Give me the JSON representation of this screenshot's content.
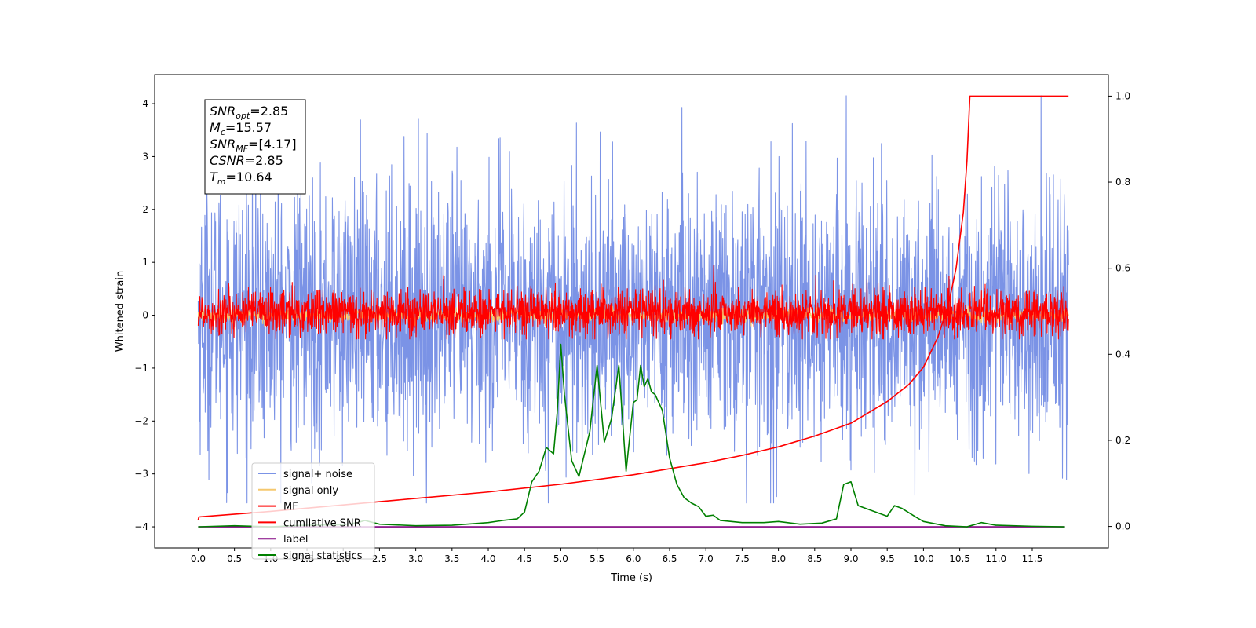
{
  "chart_data": {
    "type": "line",
    "title": "",
    "xlabel": "Time (s)",
    "ylabel": "Whitened strain",
    "ylabel_right": "",
    "xlim": [
      -0.6,
      12.55
    ],
    "ylim": [
      -4.4,
      4.55
    ],
    "ylim_right": [
      -0.05,
      1.05
    ],
    "grid": false,
    "legend_location": "lower-left",
    "x_ticks": [
      0.0,
      0.5,
      1.0,
      1.5,
      2.0,
      2.5,
      3.0,
      3.5,
      4.0,
      4.5,
      5.0,
      5.5,
      6.0,
      6.5,
      7.0,
      7.5,
      8.0,
      8.5,
      9.0,
      9.5,
      10.0,
      10.5,
      11.0,
      11.5
    ],
    "x_tick_labels": [
      "0.0",
      "0.5",
      "1.0",
      "1.5",
      "2.0",
      "2.5",
      "3.0",
      "3.5",
      "4.0",
      "4.5",
      "5.0",
      "5.5",
      "6.0",
      "6.5",
      "7.0",
      "7.5",
      "8.0",
      "8.5",
      "9.0",
      "9.5",
      "10.0",
      "10.5",
      "11.0",
      "11.5"
    ],
    "y_ticks": [
      4,
      3,
      2,
      1,
      0,
      -1,
      -2,
      -3,
      -4
    ],
    "y_tick_labels": [
      "4",
      "3",
      "2",
      "1",
      "0",
      "−1",
      "−2",
      "−3",
      "−4"
    ],
    "y_right_ticks": [
      1.0,
      0.8,
      0.6,
      0.4,
      0.2,
      0.0
    ],
    "y_right_tick_labels": [
      "1.0",
      "0.8",
      "0.6",
      "0.4",
      "0.2",
      "0.0"
    ],
    "annotation_box": [
      {
        "base": "SNR",
        "sub": "opt",
        "value": "=2.85"
      },
      {
        "base": "M",
        "sub": "c",
        "value": "=15.57"
      },
      {
        "base": "SNR",
        "sub": "MF",
        "value": "=[4.17]"
      },
      {
        "base": "CSNR",
        "sub": "",
        "value": "=2.85"
      },
      {
        "base": "T",
        "sub": "m",
        "value": "=10.64"
      }
    ],
    "series": [
      {
        "name": "signal+ noise",
        "color": "#7b93e6",
        "axis": "left",
        "kind": "noise",
        "x_range": [
          0.0,
          12.0
        ],
        "y_range": [
          -3.55,
          4.15
        ],
        "typical_amplitude": 2.0
      },
      {
        "name": "signal only",
        "color": "#f5c86e",
        "axis": "left",
        "kind": "noise",
        "x_range": [
          0.0,
          12.0
        ],
        "y_range": [
          -0.55,
          0.4
        ],
        "typical_amplitude": 0.1
      },
      {
        "name": "MF",
        "color": "#ff0000",
        "axis": "left",
        "kind": "noise",
        "x_range": [
          0.0,
          12.0
        ],
        "y_range": [
          -0.45,
          0.95
        ],
        "typical_amplitude": 0.35
      },
      {
        "name": "cumilative SNR",
        "color": "#ff0000",
        "axis": "right",
        "x": [
          0.0,
          0.01,
          1.0,
          2.0,
          3.0,
          4.0,
          5.0,
          6.0,
          7.0,
          7.5,
          8.0,
          8.5,
          9.0,
          9.5,
          9.8,
          10.0,
          10.2,
          10.35,
          10.45,
          10.55,
          10.6,
          10.64,
          12.0
        ],
        "y": [
          0.015,
          0.022,
          0.035,
          0.05,
          0.065,
          0.08,
          0.098,
          0.12,
          0.148,
          0.165,
          0.185,
          0.21,
          0.24,
          0.29,
          0.33,
          0.37,
          0.44,
          0.52,
          0.6,
          0.73,
          0.85,
          1.0,
          1.0
        ]
      },
      {
        "name": "label",
        "color": "#800080",
        "axis": "left",
        "x": [
          0.0,
          11.95
        ],
        "y": [
          -4.0,
          -4.0
        ]
      },
      {
        "name": "signal statistics",
        "color": "#008000",
        "axis": "left",
        "x": [
          0.0,
          0.5,
          1.0,
          1.5,
          2.0,
          2.2,
          2.3,
          2.5,
          3.0,
          3.5,
          4.0,
          4.2,
          4.4,
          4.5,
          4.6,
          4.7,
          4.8,
          4.9,
          4.95,
          5.0,
          5.05,
          5.15,
          5.25,
          5.4,
          5.5,
          5.6,
          5.7,
          5.8,
          5.9,
          6.0,
          6.05,
          6.1,
          6.15,
          6.2,
          6.25,
          6.3,
          6.4,
          6.5,
          6.6,
          6.7,
          6.8,
          6.9,
          7.0,
          7.1,
          7.2,
          7.5,
          7.8,
          8.0,
          8.3,
          8.6,
          8.8,
          8.9,
          9.0,
          9.1,
          9.3,
          9.5,
          9.6,
          9.7,
          9.9,
          10.0,
          10.3,
          10.6,
          10.8,
          11.0,
          11.5,
          11.95
        ],
        "y": [
          -4.0,
          -3.98,
          -4.0,
          -3.97,
          -3.96,
          -3.92,
          -3.88,
          -3.95,
          -3.98,
          -3.97,
          -3.92,
          -3.88,
          -3.85,
          -3.72,
          -3.15,
          -2.95,
          -2.5,
          -2.62,
          -1.85,
          -0.55,
          -1.5,
          -2.75,
          -3.05,
          -2.2,
          -0.95,
          -2.4,
          -1.95,
          -0.95,
          -2.95,
          -1.65,
          -1.6,
          -0.95,
          -1.35,
          -1.2,
          -1.45,
          -1.5,
          -1.8,
          -2.7,
          -3.2,
          -3.45,
          -3.55,
          -3.62,
          -3.8,
          -3.78,
          -3.88,
          -3.92,
          -3.92,
          -3.9,
          -3.95,
          -3.93,
          -3.85,
          -3.2,
          -3.15,
          -3.6,
          -3.7,
          -3.8,
          -3.6,
          -3.65,
          -3.82,
          -3.9,
          -3.98,
          -4.0,
          -3.92,
          -3.97,
          -3.99,
          -4.0
        ]
      }
    ]
  }
}
